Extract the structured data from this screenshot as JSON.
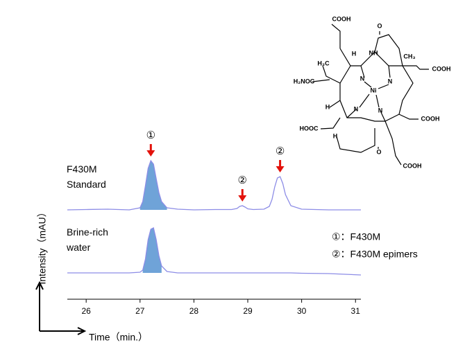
{
  "chart_data": {
    "type": "line",
    "x_label": "Time（min.）",
    "y_label": "Intensity（mAU）",
    "xlim": [
      25.65,
      31.1
    ],
    "xticks": [
      26,
      27,
      28,
      29,
      30,
      31
    ],
    "ylim": [
      0,
      100
    ],
    "x": [
      25.65,
      26.0,
      26.4,
      26.8,
      27.0,
      27.05,
      27.1,
      27.15,
      27.2,
      27.25,
      27.3,
      27.35,
      27.4,
      27.5,
      27.7,
      28.0,
      28.4,
      28.7,
      28.8,
      28.85,
      28.9,
      28.95,
      29.0,
      29.1,
      29.3,
      29.4,
      29.45,
      29.5,
      29.55,
      29.6,
      29.65,
      29.7,
      29.8,
      30.0,
      30.5,
      31.1
    ],
    "series": [
      {
        "name": "F430M Standard",
        "color": "#8c8ce6",
        "fill": "#6fa3d8",
        "values": [
          0,
          0.5,
          1,
          0,
          3,
          12,
          35,
          60,
          71,
          66,
          45,
          25,
          12,
          3,
          1,
          0,
          0.5,
          0.5,
          2,
          5,
          6,
          4,
          1.5,
          0.5,
          1,
          5,
          15,
          33,
          46,
          48,
          38,
          22,
          6,
          1,
          0,
          0
        ]
      },
      {
        "name": "Brine-rich water",
        "color": "#8c8ce6",
        "fill": "#6fa3d8",
        "values": [
          0,
          0,
          0,
          0,
          1,
          4,
          20,
          48,
          63,
          65,
          48,
          25,
          10,
          2,
          0,
          0,
          0,
          0,
          0,
          0,
          0,
          0,
          0,
          0,
          0,
          0,
          0,
          0,
          0,
          0,
          0,
          0,
          0,
          -0.5,
          -1,
          -3
        ]
      }
    ],
    "annotations": [
      {
        "label": "①",
        "x": 27.2,
        "series": 0,
        "color": "#e3120b"
      },
      {
        "label": "②",
        "x": 28.9,
        "series": 0,
        "color": "#e3120b"
      },
      {
        "label": "②",
        "x": 29.6,
        "series": 0,
        "color": "#e3120b"
      }
    ],
    "legend": [
      "①：F430M",
      "②：F430M epimers"
    ]
  },
  "structure": {
    "labels": [
      "COOH",
      "O",
      "NH",
      "H",
      "CH₃",
      "H₃C",
      "COOH",
      "H₂NOC",
      "N",
      "N",
      "Ni",
      "N",
      "N",
      "H",
      "COOH",
      "HOOC",
      "H",
      "O",
      "COOH"
    ]
  }
}
